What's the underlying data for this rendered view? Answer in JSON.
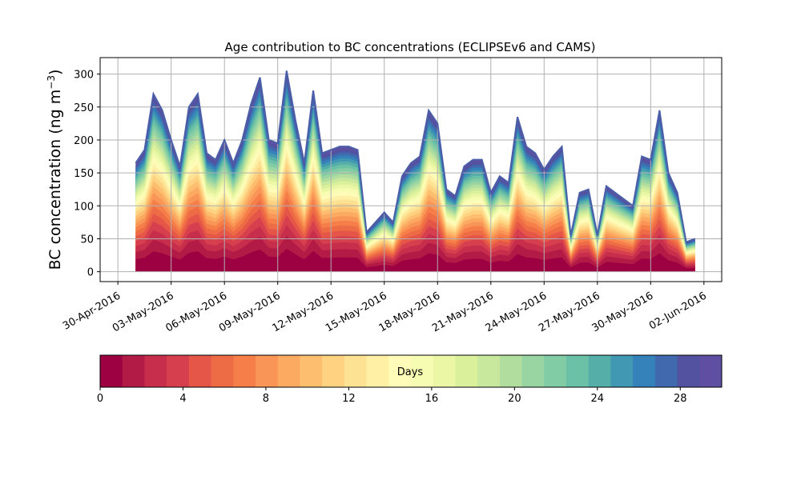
{
  "chart_data": {
    "type": "area",
    "title": "Age contribution to BC concentrations (ECLIPSEv6 and CAMS)",
    "xlabel": "",
    "ylabel_main": "BC concentration (ng m",
    "ylabel_sup": "−3",
    "ylabel_close": ")",
    "xlim": [
      "2016-04-29",
      "2016-06-03"
    ],
    "ylim": [
      -15,
      325
    ],
    "yticks": [
      0,
      50,
      100,
      150,
      200,
      250,
      300
    ],
    "xtick_dates": [
      "2016-04-30",
      "2016-05-03",
      "2016-05-06",
      "2016-05-09",
      "2016-05-12",
      "2016-05-15",
      "2016-05-18",
      "2016-05-21",
      "2016-05-24",
      "2016-05-27",
      "2016-05-30",
      "2016-06-02"
    ],
    "xtick_labels": [
      "30-Apr-2016",
      "03-May-2016",
      "06-May-2016",
      "09-May-2016",
      "12-May-2016",
      "15-May-2016",
      "18-May-2016",
      "21-May-2016",
      "24-May-2016",
      "27-May-2016",
      "30-May-2016",
      "02-Jun-2016"
    ],
    "grid": true,
    "total": {
      "dates": [
        "2016-05-01",
        "2016-05-01T12:00",
        "2016-05-02",
        "2016-05-02T12:00",
        "2016-05-03",
        "2016-05-03T12:00",
        "2016-05-04",
        "2016-05-04T12:00",
        "2016-05-05",
        "2016-05-05T12:00",
        "2016-05-06",
        "2016-05-06T12:00",
        "2016-05-07",
        "2016-05-07T12:00",
        "2016-05-08",
        "2016-05-08T12:00",
        "2016-05-09",
        "2016-05-09T12:00",
        "2016-05-10",
        "2016-05-10T12:00",
        "2016-05-11",
        "2016-05-11T12:00",
        "2016-05-12",
        "2016-05-12T12:00",
        "2016-05-13",
        "2016-05-13T12:00",
        "2016-05-14",
        "2016-05-14T12:00",
        "2016-05-15",
        "2016-05-15T12:00",
        "2016-05-16",
        "2016-05-16T12:00",
        "2016-05-17",
        "2016-05-17T12:00",
        "2016-05-18",
        "2016-05-18T12:00",
        "2016-05-19",
        "2016-05-19T12:00",
        "2016-05-20",
        "2016-05-20T12:00",
        "2016-05-21",
        "2016-05-21T12:00",
        "2016-05-22",
        "2016-05-22T12:00",
        "2016-05-23",
        "2016-05-23T12:00",
        "2016-05-24",
        "2016-05-24T12:00",
        "2016-05-25",
        "2016-05-25T12:00",
        "2016-05-26",
        "2016-05-26T12:00",
        "2016-05-27",
        "2016-05-27T12:00",
        "2016-05-28",
        "2016-05-28T12:00",
        "2016-05-29",
        "2016-05-29T12:00",
        "2016-05-30",
        "2016-05-30T12:00",
        "2016-05-31",
        "2016-05-31T12:00",
        "2016-06-01",
        "2016-06-01T12:00"
      ],
      "values": [
        165,
        185,
        270,
        245,
        200,
        160,
        250,
        270,
        180,
        170,
        200,
        165,
        200,
        255,
        295,
        200,
        195,
        305,
        230,
        165,
        275,
        180,
        185,
        190,
        190,
        185,
        60,
        75,
        90,
        75,
        145,
        165,
        175,
        245,
        225,
        125,
        115,
        160,
        170,
        170,
        120,
        145,
        135,
        235,
        190,
        180,
        155,
        175,
        190,
        55,
        120,
        125,
        55,
        130,
        120,
        110,
        100,
        175,
        170,
        245,
        150,
        120,
        45,
        50
      ]
    },
    "colorbar": {
      "label": "Days",
      "ticks": [
        0,
        4,
        8,
        12,
        16,
        20,
        24,
        28
      ],
      "range": [
        0,
        30
      ],
      "colors": [
        "#9e0142",
        "#b31b47",
        "#c72e4b",
        "#d6404e",
        "#e55649",
        "#ed6b45",
        "#f57e49",
        "#f99556",
        "#fcaa62",
        "#fdbf6f",
        "#fed281",
        "#fee293",
        "#fff0a6",
        "#fffbb8",
        "#f7fcb3",
        "#ecf7a6",
        "#dbf09a",
        "#c8e89d",
        "#b1de9f",
        "#98d5a2",
        "#81cca4",
        "#6ac1a5",
        "#55aea8",
        "#4198b2",
        "#3581b9",
        "#4169ae",
        "#5252a1",
        "#5e4fa2"
      ]
    }
  }
}
